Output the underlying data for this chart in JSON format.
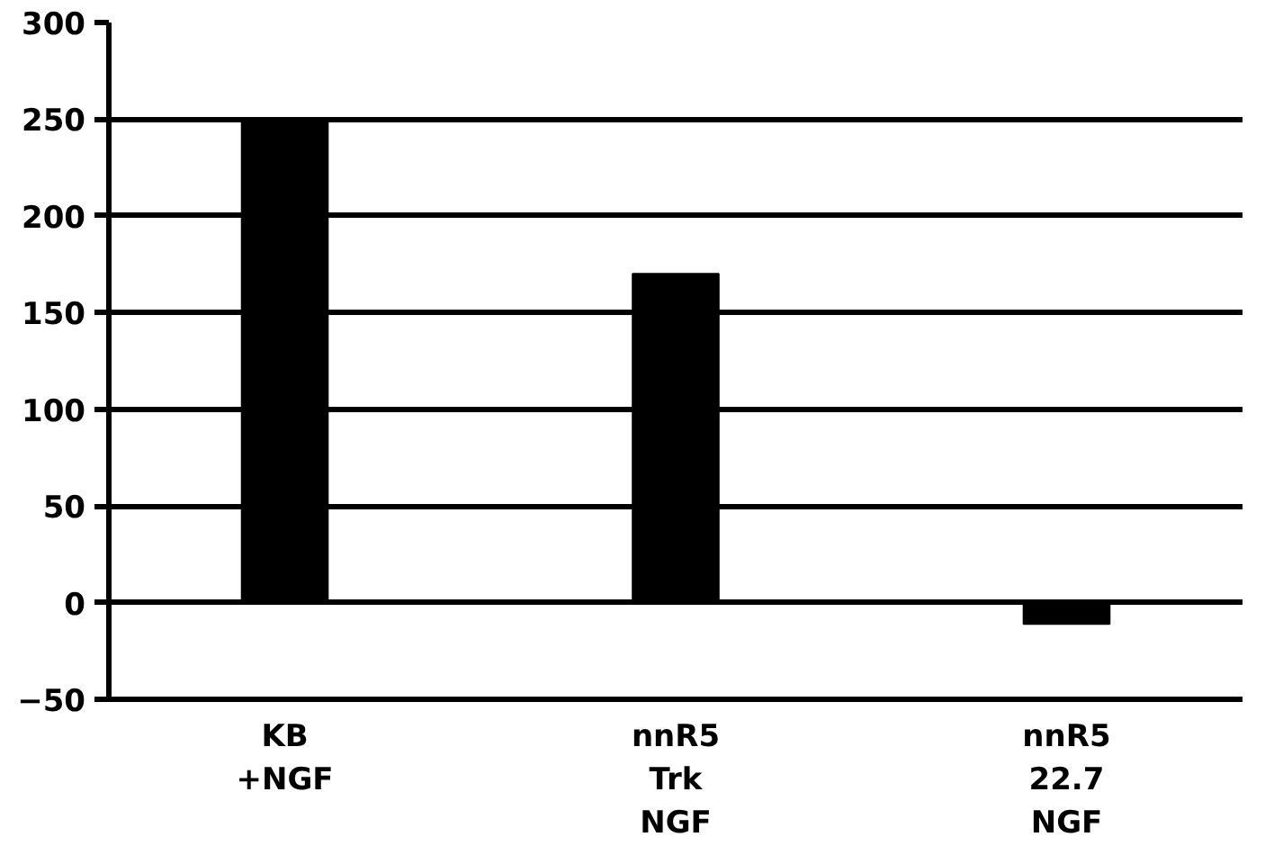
{
  "chart_data": {
    "type": "bar",
    "categories": [
      "KB\n+NGF",
      "nnR5\nTrk\nNGF",
      "nnR5\n22.7\nNGF"
    ],
    "values": [
      250,
      170,
      -11
    ],
    "color": "#000000",
    "ylim": [
      -50,
      300
    ],
    "yticks": [
      -50,
      0,
      50,
      100,
      150,
      200,
      250,
      300
    ],
    "grid": "y"
  }
}
